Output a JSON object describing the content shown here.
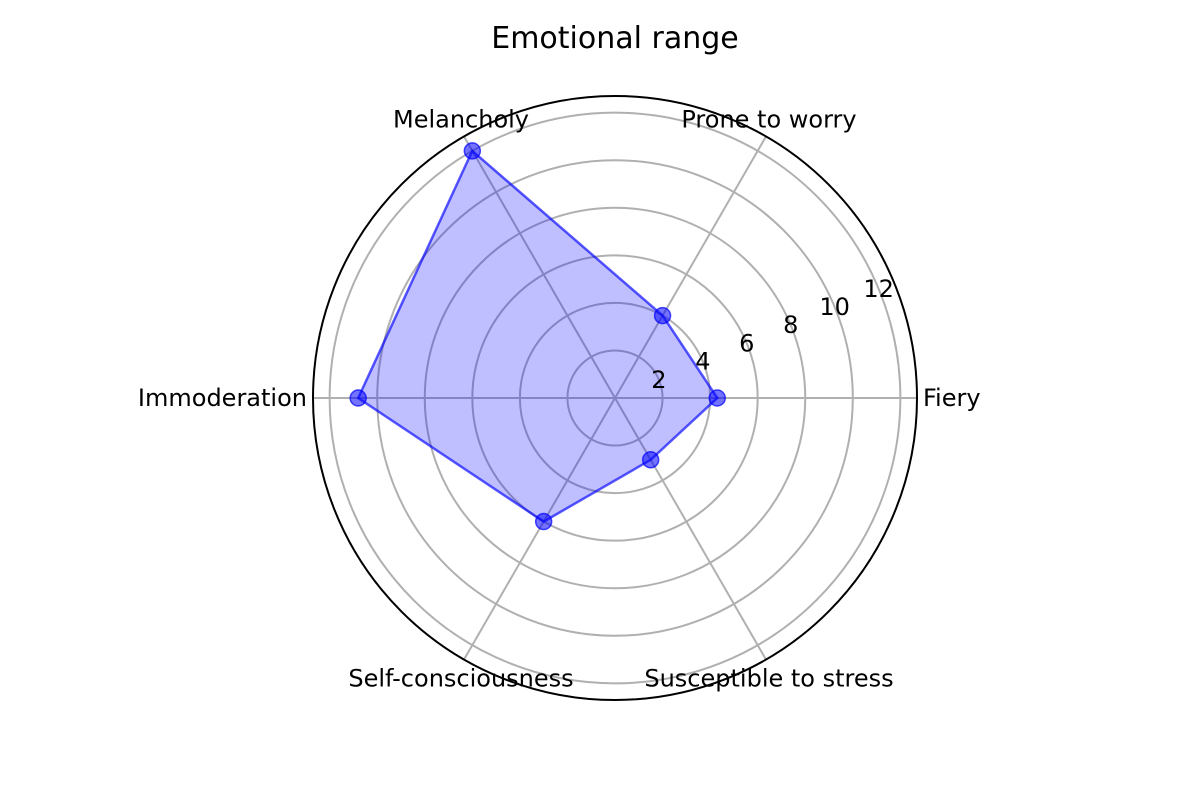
{
  "chart_data": {
    "type": "radar",
    "title": "Emotional range",
    "categories": [
      "Fiery",
      "Prone to worry",
      "Melancholy",
      "Immoderation",
      "Self-consciousness",
      "Susceptible to stress"
    ],
    "series": [
      {
        "values": [
          4.3,
          4.0,
          12.0,
          10.8,
          6.0,
          3.0
        ]
      }
    ],
    "rlim": [
      0,
      12.7
    ],
    "rticks": [
      2,
      4,
      6,
      8,
      10,
      12
    ],
    "grid": true,
    "colors": {
      "fill": "#0000ff",
      "fill_opacity": 0.25,
      "line": "#0000ff",
      "marker": "#0000ff",
      "grid": "#b0b0b0",
      "frame": "#000000"
    }
  }
}
